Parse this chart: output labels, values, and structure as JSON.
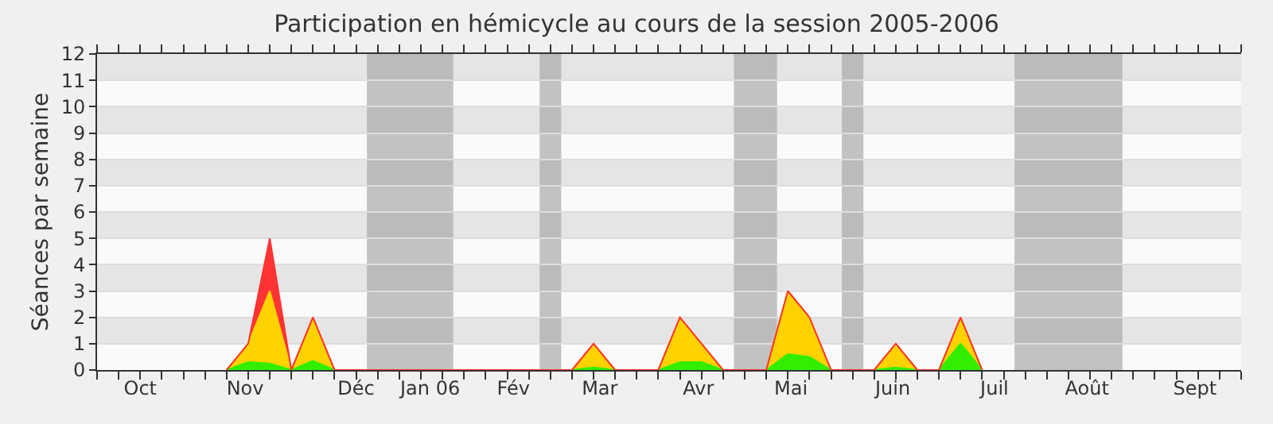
{
  "chart_data": {
    "type": "area",
    "stacked": true,
    "title": "Participation en hémicycle au cours de la session 2005-2006",
    "ylabel": "Séances par semaine",
    "x": [
      "2005-10-31",
      "2005-11-07",
      "2005-11-14",
      "2005-11-21",
      "2005-11-28",
      "2005-12-05",
      "2006-02-20",
      "2006-02-27",
      "2006-03-06",
      "2006-03-20",
      "2006-03-27",
      "2006-04-03",
      "2006-04-10",
      "2006-04-24",
      "2006-05-01",
      "2006-05-08",
      "2006-05-15",
      "2006-05-29",
      "2006-06-05",
      "2006-06-12",
      "2006-06-19",
      "2006-06-26",
      "2006-07-03"
    ],
    "series": [
      {
        "color": "#33ee00",
        "values": [
          0,
          0.3,
          0.25,
          0,
          0.35,
          0,
          0,
          0.1,
          0,
          0,
          0.3,
          0.3,
          0,
          0,
          0.6,
          0.5,
          0,
          0,
          0.1,
          0,
          0,
          1,
          0
        ]
      },
      {
        "color": "#ffd200",
        "values": [
          0,
          0.7,
          2.75,
          0,
          1.65,
          0,
          0,
          0.9,
          0,
          0,
          1.7,
          0.7,
          0,
          0,
          2.4,
          1.5,
          0,
          0,
          0.9,
          0,
          0,
          1,
          0
        ]
      },
      {
        "color": "#ff3333",
        "values": [
          0,
          0,
          2,
          0,
          0,
          0,
          0,
          0,
          0,
          0,
          0,
          0,
          0,
          0,
          0,
          0,
          0,
          0,
          0,
          0,
          0,
          0,
          0
        ]
      }
    ],
    "xlim": [
      "2005-09-19",
      "2006-09-25"
    ],
    "xticks": [
      {
        "value": "2005-09-19",
        "label": null
      },
      {
        "value": "2005-09-26",
        "label": null
      },
      {
        "value": "2005-10-03",
        "label": null
      },
      {
        "value": "2005-10-10",
        "label": null
      },
      {
        "value": "2005-10-17",
        "label": null
      },
      {
        "value": "2005-10-24",
        "label": null
      },
      {
        "value": "2005-10-31",
        "label": null
      },
      {
        "value": "2005-11-07",
        "label": null
      },
      {
        "value": "2005-11-14",
        "label": null
      },
      {
        "value": "2005-11-21",
        "label": null
      },
      {
        "value": "2005-11-28",
        "label": null
      },
      {
        "value": "2005-12-05",
        "label": null
      },
      {
        "value": "2005-12-12",
        "label": null
      },
      {
        "value": "2005-12-19",
        "label": null
      },
      {
        "value": "2005-12-26",
        "label": null
      },
      {
        "value": "2006-01-02",
        "label": null
      },
      {
        "value": "2006-01-09",
        "label": null
      },
      {
        "value": "2006-01-16",
        "label": null
      },
      {
        "value": "2006-01-23",
        "label": null
      },
      {
        "value": "2006-01-30",
        "label": null
      },
      {
        "value": "2006-02-06",
        "label": null
      },
      {
        "value": "2006-02-13",
        "label": null
      },
      {
        "value": "2006-02-20",
        "label": null
      },
      {
        "value": "2006-02-27",
        "label": null
      },
      {
        "value": "2006-03-06",
        "label": null
      },
      {
        "value": "2006-03-13",
        "label": null
      },
      {
        "value": "2006-03-20",
        "label": null
      },
      {
        "value": "2006-03-27",
        "label": null
      },
      {
        "value": "2006-04-03",
        "label": null
      },
      {
        "value": "2006-04-10",
        "label": null
      },
      {
        "value": "2006-04-17",
        "label": null
      },
      {
        "value": "2006-04-24",
        "label": null
      },
      {
        "value": "2006-05-01",
        "label": null
      },
      {
        "value": "2006-05-08",
        "label": null
      },
      {
        "value": "2006-05-15",
        "label": null
      },
      {
        "value": "2006-05-22",
        "label": null
      },
      {
        "value": "2006-05-29",
        "label": null
      },
      {
        "value": "2006-06-05",
        "label": null
      },
      {
        "value": "2006-06-12",
        "label": null
      },
      {
        "value": "2006-06-19",
        "label": null
      },
      {
        "value": "2006-06-26",
        "label": null
      },
      {
        "value": "2006-07-03",
        "label": null
      },
      {
        "value": "2006-07-10",
        "label": null
      },
      {
        "value": "2006-07-17",
        "label": null
      },
      {
        "value": "2006-07-24",
        "label": null
      },
      {
        "value": "2006-07-31",
        "label": null
      },
      {
        "value": "2006-08-07",
        "label": null
      },
      {
        "value": "2006-08-14",
        "label": null
      },
      {
        "value": "2006-08-21",
        "label": null
      },
      {
        "value": "2006-08-28",
        "label": null
      },
      {
        "value": "2006-09-04",
        "label": null
      },
      {
        "value": "2006-09-11",
        "label": null
      },
      {
        "value": "2006-09-18",
        "label": null
      },
      {
        "value": "2006-09-25",
        "label": null
      },
      {
        "value": "2005-10-03",
        "label": "Oct"
      },
      {
        "value": "2005-11-06",
        "label": "Nov"
      },
      {
        "value": "2005-12-12",
        "label": "Déc"
      },
      {
        "value": "2006-01-05",
        "label": "Jan 06"
      },
      {
        "value": "2006-02-01",
        "label": "Fév"
      },
      {
        "value": "2006-03-01",
        "label": "Mar"
      },
      {
        "value": "2006-04-02",
        "label": "Avr"
      },
      {
        "value": "2006-05-02",
        "label": "Mai"
      },
      {
        "value": "2006-06-04",
        "label": "Juin"
      },
      {
        "value": "2006-07-07",
        "label": "Juil"
      },
      {
        "value": "2006-08-06",
        "label": "Août"
      },
      {
        "value": "2006-09-10",
        "label": "Sept"
      }
    ],
    "ylim": [
      0,
      12
    ],
    "yticks": [
      0,
      1,
      2,
      3,
      4,
      5,
      6,
      7,
      8,
      9,
      10,
      11,
      12
    ],
    "grid": "y",
    "bands": [
      {
        "axis": "x",
        "from": "2005-12-15T12:00",
        "to": "2006-01-12T12:00",
        "color": "#aaaaaa"
      },
      {
        "axis": "x",
        "from": "2006-02-09T12:00",
        "to": "2006-02-16T12:00",
        "color": "#aaaaaa"
      },
      {
        "axis": "x",
        "from": "2006-04-13T12:00",
        "to": "2006-04-27T12:00",
        "color": "#aaaaaa"
      },
      {
        "axis": "x",
        "from": "2006-05-18T12:00",
        "to": "2006-05-25T12:00",
        "color": "#aaaaaa"
      },
      {
        "axis": "x",
        "from": "2006-07-13T12:00",
        "to": "2006-08-17T12:00",
        "color": "#aaaaaa"
      }
    ]
  }
}
